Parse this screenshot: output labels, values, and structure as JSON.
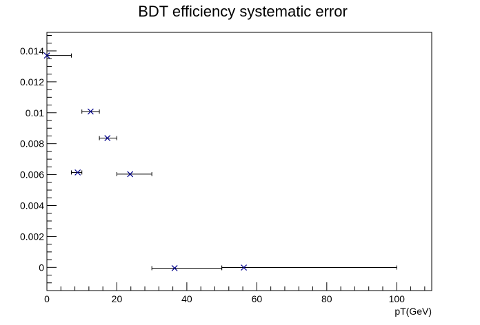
{
  "chart_data": {
    "type": "scatter",
    "title": "BDT efficiency systematic error",
    "xlabel": "pT(GeV)",
    "ylabel": "",
    "xlim": [
      0,
      110
    ],
    "ylim": [
      -0.0015,
      0.0152
    ],
    "x_ticks": [
      0,
      20,
      40,
      60,
      80,
      100
    ],
    "y_ticks": [
      0,
      0.002,
      0.004,
      0.006,
      0.008,
      0.01,
      0.012,
      0.014
    ],
    "x_tick_labels": [
      "0",
      "20",
      "40",
      "60",
      "80",
      "100"
    ],
    "y_tick_labels": [
      "0",
      "0.002",
      "0.004",
      "0.006",
      "0.008",
      "0.01",
      "0.012",
      "0.014"
    ],
    "grid": false,
    "marker": "x",
    "marker_color": "#00008b",
    "series": [
      {
        "points": [
          {
            "x": 0.0,
            "xlo": 0,
            "xhi": 7,
            "y": 0.0137
          },
          {
            "x": 8.8,
            "xlo": 7,
            "xhi": 10,
            "y": 0.00614
          },
          {
            "x": 12.5,
            "xlo": 10,
            "xhi": 15,
            "y": 0.01008
          },
          {
            "x": 17.3,
            "xlo": 15,
            "xhi": 20,
            "y": 0.00836
          },
          {
            "x": 23.8,
            "xlo": 20,
            "xhi": 30,
            "y": 0.00603
          },
          {
            "x": 36.5,
            "xlo": 30,
            "xhi": 50,
            "y": -5e-05
          },
          {
            "x": 56.3,
            "xlo": 50,
            "xhi": 100,
            "y": -1e-05
          }
        ]
      }
    ]
  }
}
